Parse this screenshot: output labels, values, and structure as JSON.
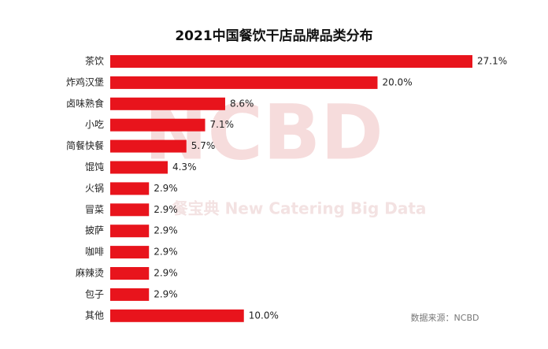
{
  "chart_data": {
    "type": "bar",
    "orientation": "horizontal",
    "title": "2021中国餐饮干店品牌品类分布",
    "categories": [
      "茶饮",
      "炸鸡汉堡",
      "卤味熟食",
      "小吃",
      "简餐快餐",
      "馄饨",
      "火锅",
      "冒菜",
      "披萨",
      "咖啡",
      "麻辣烫",
      "包子",
      "其他"
    ],
    "values": [
      27.1,
      20.0,
      8.6,
      7.1,
      5.7,
      4.3,
      2.9,
      2.9,
      2.9,
      2.9,
      2.9,
      2.9,
      10.0
    ],
    "value_labels": [
      "27.1%",
      "20.0%",
      "8.6%",
      "7.1%",
      "5.7%",
      "4.3%",
      "2.9%",
      "2.9%",
      "2.9%",
      "2.9%",
      "2.9%",
      "2.9%",
      "10.0%"
    ],
    "color": "#e8141c",
    "watermark": [
      "NCBD",
      "餐宝典 New Catering Big Data"
    ],
    "source": "数据来源：NCBD"
  }
}
